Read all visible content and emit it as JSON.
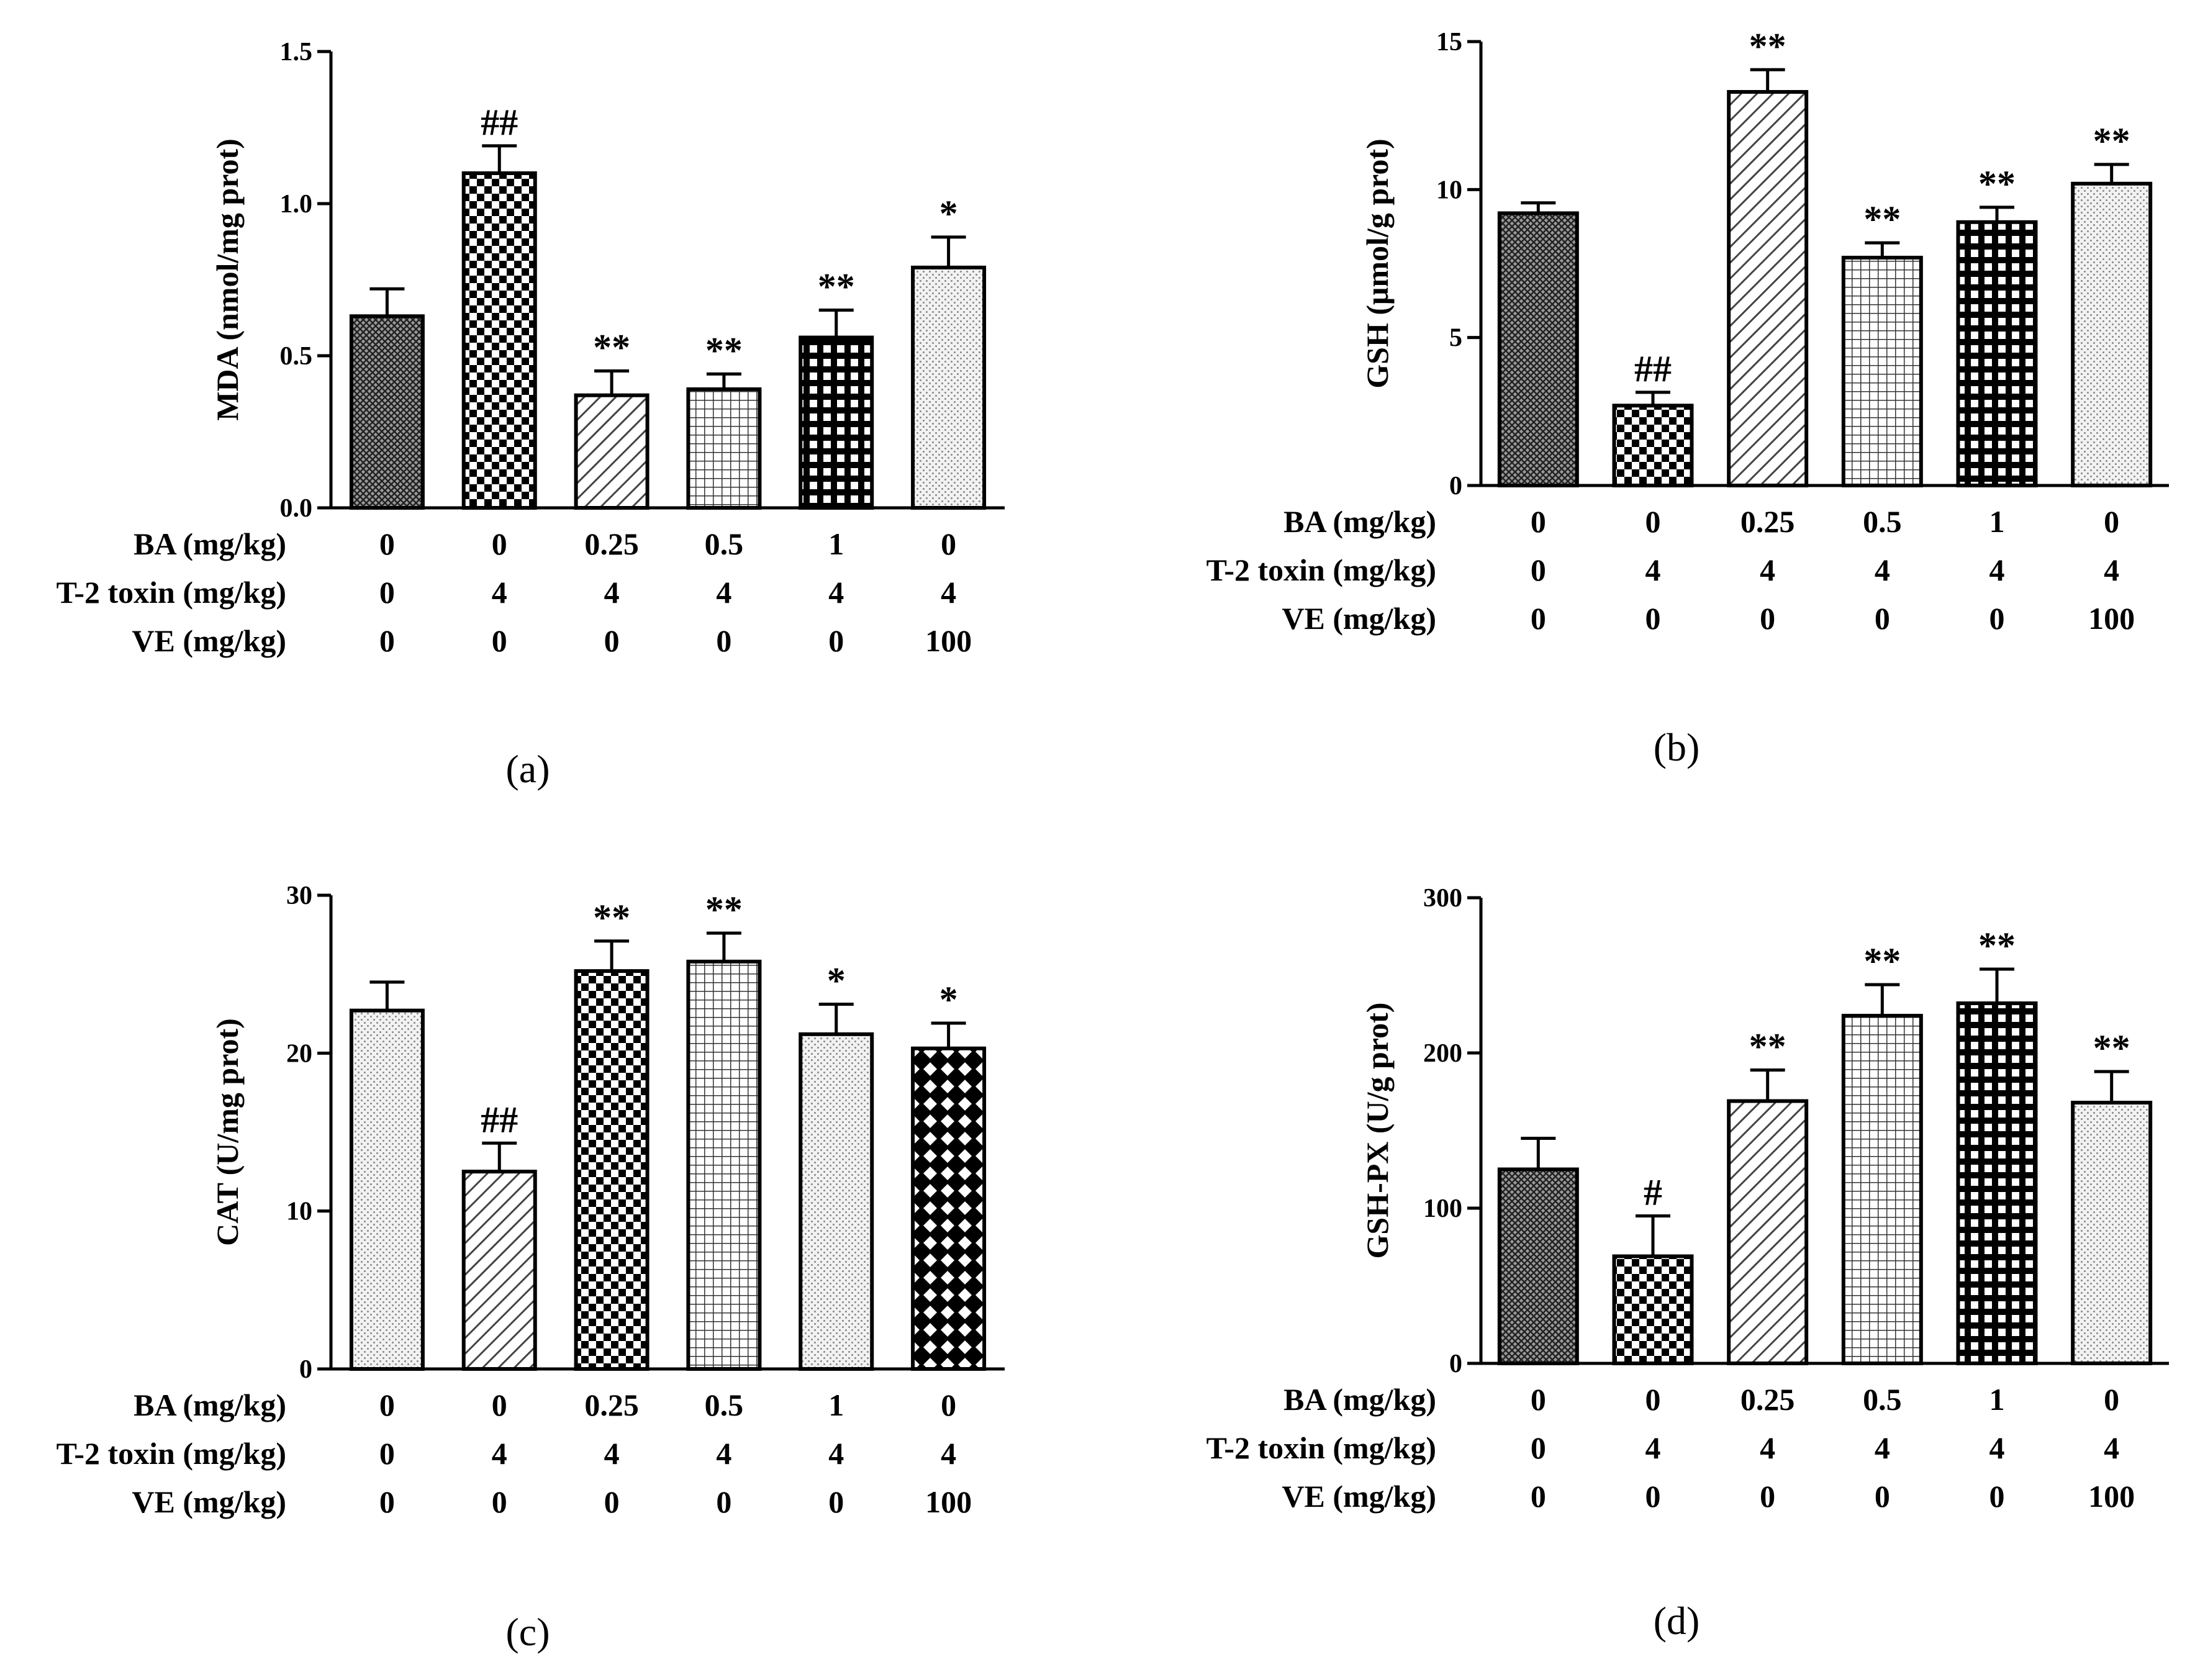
{
  "chart_data": [
    {
      "type": "bar",
      "panel_label": "(a)",
      "ylabel": "MDA (nmol/mg prot)",
      "ylim": [
        0,
        1.5
      ],
      "yticks": [
        "0.0",
        "0.5",
        "1.0",
        "1.5"
      ],
      "ytick_values": [
        0,
        0.5,
        1.0,
        1.5
      ],
      "values": [
        0.63,
        1.1,
        0.37,
        0.39,
        0.56,
        0.79
      ],
      "errors": [
        0.09,
        0.09,
        0.08,
        0.05,
        0.09,
        0.1
      ],
      "annotations": [
        "",
        "##",
        "**",
        "**",
        "**",
        "*"
      ],
      "patterns": [
        "crosshatch-fine",
        "checker",
        "diagonal",
        "grid-fine",
        "grid-bold",
        "dots"
      ],
      "conditions": [
        {
          "label": "BA (mg/kg)",
          "values": [
            "0",
            "0",
            "0.25",
            "0.5",
            "1",
            "0"
          ]
        },
        {
          "label": "T-2 toxin (mg/kg)",
          "values": [
            "0",
            "4",
            "4",
            "4",
            "4",
            "4"
          ]
        },
        {
          "label": "VE (mg/kg)",
          "values": [
            "0",
            "0",
            "0",
            "0",
            "0",
            "100"
          ]
        }
      ]
    },
    {
      "type": "bar",
      "panel_label": "(b)",
      "ylabel": "GSH (μmol/g prot)",
      "ylim": [
        0,
        15
      ],
      "yticks": [
        "0",
        "5",
        "10",
        "15"
      ],
      "ytick_values": [
        0,
        5,
        10,
        15
      ],
      "values": [
        9.2,
        2.7,
        13.3,
        7.7,
        8.9,
        10.2
      ],
      "errors": [
        0.35,
        0.45,
        0.75,
        0.5,
        0.5,
        0.65
      ],
      "annotations": [
        "",
        "##",
        "**",
        "**",
        "**",
        "**"
      ],
      "patterns": [
        "crosshatch-fine",
        "checker",
        "diagonal",
        "grid-fine",
        "grid-bold",
        "dots"
      ],
      "conditions": [
        {
          "label": "BA (mg/kg)",
          "values": [
            "0",
            "0",
            "0.25",
            "0.5",
            "1",
            "0"
          ]
        },
        {
          "label": "T-2 toxin (mg/kg)",
          "values": [
            "0",
            "4",
            "4",
            "4",
            "4",
            "4"
          ]
        },
        {
          "label": "VE (mg/kg)",
          "values": [
            "0",
            "0",
            "0",
            "0",
            "0",
            "100"
          ]
        }
      ]
    },
    {
      "type": "bar",
      "panel_label": "(c)",
      "ylabel": "CAT (U/mg prot)",
      "ylim": [
        0,
        30
      ],
      "yticks": [
        "0",
        "10",
        "20",
        "30"
      ],
      "ytick_values": [
        0,
        10,
        20,
        30
      ],
      "values": [
        22.7,
        12.5,
        25.2,
        25.8,
        21.2,
        20.3
      ],
      "errors": [
        1.8,
        1.8,
        1.9,
        1.8,
        1.9,
        1.6
      ],
      "annotations": [
        "",
        "##",
        "**",
        "**",
        "*",
        "*"
      ],
      "patterns": [
        "dots",
        "diagonal",
        "checker",
        "grid-fine",
        "dots",
        "crossdiag-bold"
      ],
      "conditions": [
        {
          "label": "BA (mg/kg)",
          "values": [
            "0",
            "0",
            "0.25",
            "0.5",
            "1",
            "0"
          ]
        },
        {
          "label": "T-2 toxin (mg/kg)",
          "values": [
            "0",
            "4",
            "4",
            "4",
            "4",
            "4"
          ]
        },
        {
          "label": "VE (mg/kg)",
          "values": [
            "0",
            "0",
            "0",
            "0",
            "0",
            "100"
          ]
        }
      ]
    },
    {
      "type": "bar",
      "panel_label": "(d)",
      "ylabel": "GSH-PX (U/g prot)",
      "ylim": [
        0,
        300
      ],
      "yticks": [
        "0",
        "100",
        "200",
        "300"
      ],
      "ytick_values": [
        0,
        100,
        200,
        300
      ],
      "values": [
        125,
        69,
        169,
        224,
        232,
        168
      ],
      "errors": [
        20,
        26,
        20,
        20,
        22,
        20
      ],
      "annotations": [
        "",
        "#",
        "**",
        "**",
        "**",
        "**"
      ],
      "patterns": [
        "crosshatch-fine",
        "checker",
        "diagonal",
        "grid-fine",
        "grid-bold",
        "dots"
      ],
      "conditions": [
        {
          "label": "BA (mg/kg)",
          "values": [
            "0",
            "0",
            "0.25",
            "0.5",
            "1",
            "0"
          ]
        },
        {
          "label": "T-2 toxin (mg/kg)",
          "values": [
            "0",
            "4",
            "4",
            "4",
            "4",
            "4"
          ]
        },
        {
          "label": "VE (mg/kg)",
          "values": [
            "0",
            "0",
            "0",
            "0",
            "0",
            "100"
          ]
        }
      ]
    }
  ]
}
